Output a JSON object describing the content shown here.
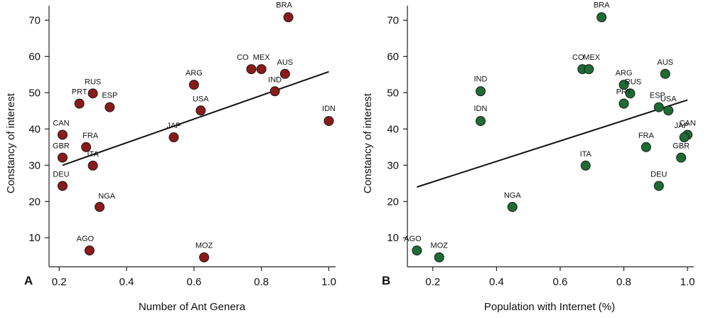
{
  "chart_data": [
    {
      "panel_letter": "A",
      "type": "scatter",
      "xlabel": "Number of Ant Genera",
      "ylabel": "Constancy of interest",
      "xlim": [
        0.17,
        1.02
      ],
      "ylim": [
        2,
        74
      ],
      "xticks": [
        0.2,
        0.4,
        0.6,
        0.8,
        1.0
      ],
      "xtick_labels": [
        "0.2",
        "0.4",
        "0.6",
        "0.8",
        "1.0"
      ],
      "yticks": [
        10,
        20,
        30,
        40,
        50,
        60,
        70
      ],
      "ytick_labels": [
        "10",
        "20",
        "30",
        "40",
        "50",
        "60",
        "70"
      ],
      "marker_color": "#8b1a1a",
      "points": [
        {
          "label": "BRA",
          "x": 0.88,
          "y": 70.8
        },
        {
          "label": "CO",
          "x": 0.77,
          "y": 56.5
        },
        {
          "label": "MEX",
          "x": 0.8,
          "y": 56.5
        },
        {
          "label": "AUS",
          "x": 0.87,
          "y": 55.2
        },
        {
          "label": "ARG",
          "x": 0.6,
          "y": 52.2
        },
        {
          "label": "IND",
          "x": 0.84,
          "y": 50.4
        },
        {
          "label": "RUS",
          "x": 0.3,
          "y": 49.8
        },
        {
          "label": "PRT",
          "x": 0.26,
          "y": 47.0
        },
        {
          "label": "ESP",
          "x": 0.35,
          "y": 46.0
        },
        {
          "label": "USA",
          "x": 0.62,
          "y": 45.1
        },
        {
          "label": "IDN",
          "x": 1.0,
          "y": 42.2
        },
        {
          "label": "CAN",
          "x": 0.21,
          "y": 38.4
        },
        {
          "label": "JAP",
          "x": 0.54,
          "y": 37.7
        },
        {
          "label": "FRA",
          "x": 0.28,
          "y": 35.0
        },
        {
          "label": "GBR",
          "x": 0.21,
          "y": 32.1
        },
        {
          "label": "ITA",
          "x": 0.3,
          "y": 29.9
        },
        {
          "label": "DEU",
          "x": 0.21,
          "y": 24.3
        },
        {
          "label": "NGA",
          "x": 0.32,
          "y": 18.5
        },
        {
          "label": "AGO",
          "x": 0.29,
          "y": 6.5
        },
        {
          "label": "MOZ",
          "x": 0.63,
          "y": 4.6
        }
      ],
      "fit_line": {
        "x": [
          0.21,
          1.0
        ],
        "y": [
          30.0,
          55.8
        ]
      }
    },
    {
      "panel_letter": "B",
      "type": "scatter",
      "xlabel": "Population with Internet (%)",
      "ylabel": "Constancy of interest",
      "xlim": [
        0.12,
        1.02
      ],
      "ylim": [
        2,
        74
      ],
      "xticks": [
        0.2,
        0.4,
        0.6,
        0.8,
        1.0
      ],
      "xtick_labels": [
        "0.2",
        "0.4",
        "0.6",
        "0.8",
        "1.0"
      ],
      "yticks": [
        10,
        20,
        30,
        40,
        50,
        60,
        70
      ],
      "ytick_labels": [
        "10",
        "20",
        "30",
        "40",
        "50",
        "60",
        "70"
      ],
      "marker_color": "#1e6b35",
      "points": [
        {
          "label": "BRA",
          "x": 0.73,
          "y": 70.8
        },
        {
          "label": "CO",
          "x": 0.67,
          "y": 56.5
        },
        {
          "label": "MEX",
          "x": 0.69,
          "y": 56.5
        },
        {
          "label": "AUS",
          "x": 0.93,
          "y": 55.2
        },
        {
          "label": "ARG",
          "x": 0.8,
          "y": 52.2
        },
        {
          "label": "RUS",
          "x": 0.82,
          "y": 49.8
        },
        {
          "label": "IND",
          "x": 0.35,
          "y": 50.4
        },
        {
          "label": "PRT",
          "x": 0.8,
          "y": 47.0
        },
        {
          "label": "ESP",
          "x": 0.91,
          "y": 46.0
        },
        {
          "label": "USA",
          "x": 0.94,
          "y": 45.1
        },
        {
          "label": "IDN",
          "x": 0.35,
          "y": 42.2
        },
        {
          "label": "CAN",
          "x": 1.0,
          "y": 38.4
        },
        {
          "label": "JAP",
          "x": 0.99,
          "y": 37.7
        },
        {
          "label": "FRA",
          "x": 0.87,
          "y": 35.0
        },
        {
          "label": "GBR",
          "x": 0.98,
          "y": 32.1
        },
        {
          "label": "ITA",
          "x": 0.68,
          "y": 29.9
        },
        {
          "label": "DEU",
          "x": 0.91,
          "y": 24.3
        },
        {
          "label": "NGA",
          "x": 0.45,
          "y": 18.5
        },
        {
          "label": "AGO",
          "x": 0.15,
          "y": 6.5
        },
        {
          "label": "MOZ",
          "x": 0.22,
          "y": 4.6
        }
      ],
      "fit_line": {
        "x": [
          0.15,
          1.0
        ],
        "y": [
          24.0,
          48.0
        ]
      }
    }
  ]
}
